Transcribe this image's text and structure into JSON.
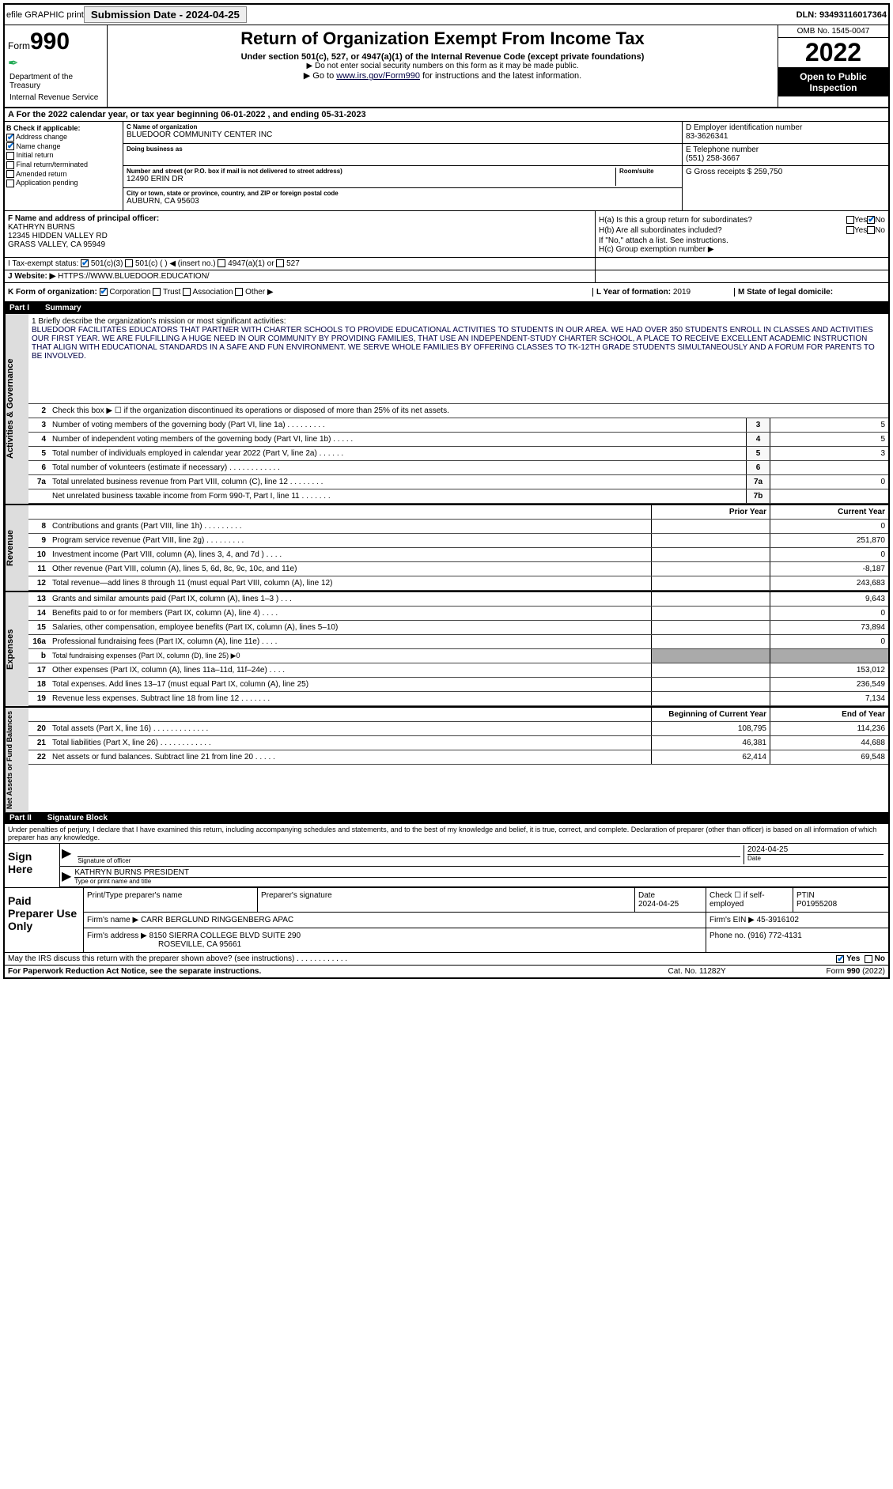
{
  "topbar": {
    "efile": "efile GRAPHIC print",
    "submission": "Submission Date - 2024-04-25",
    "dln": "DLN: 93493116017364"
  },
  "header": {
    "form_label": "Form",
    "form_num": "990",
    "title": "Return of Organization Exempt From Income Tax",
    "subtitle": "Under section 501(c), 527, or 4947(a)(1) of the Internal Revenue Code (except private foundations)",
    "note1": "▶ Do not enter social security numbers on this form as it may be made public.",
    "note2_pre": "▶ Go to ",
    "note2_link": "www.irs.gov/Form990",
    "note2_post": " for instructions and the latest information.",
    "omb": "OMB No. 1545-0047",
    "year": "2022",
    "inspection": "Open to Public Inspection",
    "dept": "Department of the Treasury",
    "irs": "Internal Revenue Service"
  },
  "rowA": "A  For the 2022 calendar year, or tax year beginning 06-01-2022  , and ending 05-31-2023",
  "sectionB": {
    "header": "B Check if applicable:",
    "items": [
      {
        "label": "Address change",
        "checked": true
      },
      {
        "label": "Name change",
        "checked": true
      },
      {
        "label": "Initial return",
        "checked": false
      },
      {
        "label": "Final return/terminated",
        "checked": false
      },
      {
        "label": "Amended return",
        "checked": false
      },
      {
        "label": "Application pending",
        "checked": false
      }
    ]
  },
  "sectionC": {
    "name_label": "C Name of organization",
    "name": "BLUEDOOR COMMUNITY CENTER INC",
    "dba_label": "Doing business as",
    "dba": "",
    "addr_label": "Number and street (or P.O. box if mail is not delivered to street address)",
    "room_label": "Room/suite",
    "addr": "12490 ERIN DR",
    "city_label": "City or town, state or province, country, and ZIP or foreign postal code",
    "city": "AUBURN, CA  95603"
  },
  "sectionD": {
    "ein_label": "D Employer identification number",
    "ein": "83-3626341",
    "phone_label": "E Telephone number",
    "phone": "(551) 258-3667",
    "gross_label": "G Gross receipts $",
    "gross": "259,750"
  },
  "sectionF": {
    "label": "F  Name and address of principal officer:",
    "name": "KATHRYN BURNS",
    "addr1": "12345 HIDDEN VALLEY RD",
    "addr2": "GRASS VALLEY, CA  95949"
  },
  "sectionH": {
    "a_label": "H(a)  Is this a group return for subordinates?",
    "a_yes": "Yes",
    "a_no": "No",
    "b_label": "H(b)  Are all subordinates included?",
    "b_note": "If \"No,\" attach a list. See instructions.",
    "c_label": "H(c)  Group exemption number ▶"
  },
  "rowI": {
    "label": "I    Tax-exempt status:",
    "opt1": "501(c)(3)",
    "opt2": "501(c) (  ) ◀ (insert no.)",
    "opt3": "4947(a)(1) or",
    "opt4": "527"
  },
  "rowJ": {
    "label": "J   Website: ▶",
    "url": "HTTPS://WWW.BLUEDOOR.EDUCATION/"
  },
  "rowK": {
    "label": "K Form of organization:",
    "opts": [
      "Corporation",
      "Trust",
      "Association",
      "Other ▶"
    ],
    "L_label": "L Year of formation:",
    "L_val": "2019",
    "M_label": "M State of legal domicile:",
    "M_val": ""
  },
  "partI": {
    "header_num": "Part I",
    "header_title": "Summary"
  },
  "mission": {
    "label": "1   Briefly describe the organization's mission or most significant activities:",
    "text": "BLUEDOOR FACILITATES EDUCATORS THAT PARTNER WITH CHARTER SCHOOLS TO PROVIDE EDUCATIONAL ACTIVITIES TO STUDENTS IN OUR AREA. WE HAD OVER 350 STUDENTS ENROLL IN CLASSES AND ACTIVITIES OUR FIRST YEAR. WE ARE FULFILLING A HUGE NEED IN OUR COMMUNITY BY PROVIDING FAMILIES, THAT USE AN INDEPENDENT-STUDY CHARTER SCHOOL, A PLACE TO RECEIVE EXCELLENT ACADEMIC INSTRUCTION THAT ALIGN WITH EDUCATIONAL STANDARDS IN A SAFE AND FUN ENVIRONMENT. WE SERVE WHOLE FAMILIES BY OFFERING CLASSES TO TK-12TH GRADE STUDENTS SIMULTANEOUSLY AND A FORUM FOR PARENTS TO BE INVOLVED."
  },
  "governance_lines": [
    {
      "num": "2",
      "desc": "Check this box ▶ ☐ if the organization discontinued its operations or disposed of more than 25% of its net assets.",
      "box": "",
      "val": "",
      "fullwidth": true
    },
    {
      "num": "3",
      "desc": "Number of voting members of the governing body (Part VI, line 1a)  .   .   .   .   .   .   .   .   .",
      "box": "3",
      "val": "5"
    },
    {
      "num": "4",
      "desc": "Number of independent voting members of the governing body (Part VI, line 1b)  .   .   .   .   .",
      "box": "4",
      "val": "5"
    },
    {
      "num": "5",
      "desc": "Total number of individuals employed in calendar year 2022 (Part V, line 2a)  .   .   .   .   .   .",
      "box": "5",
      "val": "3"
    },
    {
      "num": "6",
      "desc": "Total number of volunteers (estimate if necessary)  .   .   .   .   .   .   .   .   .   .   .   .",
      "box": "6",
      "val": ""
    },
    {
      "num": "7a",
      "desc": "Total unrelated business revenue from Part VIII, column (C), line 12  .   .   .   .   .   .   .   .",
      "box": "7a",
      "val": "0"
    },
    {
      "num": "",
      "desc": "Net unrelated business taxable income from Form 990-T, Part I, line 11  .   .   .   .   .   .   .",
      "box": "7b",
      "val": ""
    }
  ],
  "two_col_header": {
    "prior": "Prior Year",
    "current": "Current Year"
  },
  "revenue_lines": [
    {
      "num": "8",
      "desc": "Contributions and grants (Part VIII, line 1h)  .   .   .   .   .   .   .   .   .",
      "prior": "",
      "current": "0"
    },
    {
      "num": "9",
      "desc": "Program service revenue (Part VIII, line 2g)  .   .   .   .   .   .   .   .   .",
      "prior": "",
      "current": "251,870"
    },
    {
      "num": "10",
      "desc": "Investment income (Part VIII, column (A), lines 3, 4, and 7d )  .   .   .   .",
      "prior": "",
      "current": "0"
    },
    {
      "num": "11",
      "desc": "Other revenue (Part VIII, column (A), lines 5, 6d, 8c, 9c, 10c, and 11e)",
      "prior": "",
      "current": "-8,187"
    },
    {
      "num": "12",
      "desc": "Total revenue—add lines 8 through 11 (must equal Part VIII, column (A), line 12)",
      "prior": "",
      "current": "243,683"
    }
  ],
  "expense_lines": [
    {
      "num": "13",
      "desc": "Grants and similar amounts paid (Part IX, column (A), lines 1–3 )  .   .   .",
      "prior": "",
      "current": "9,643"
    },
    {
      "num": "14",
      "desc": "Benefits paid to or for members (Part IX, column (A), line 4)  .   .   .   .",
      "prior": "",
      "current": "0"
    },
    {
      "num": "15",
      "desc": "Salaries, other compensation, employee benefits (Part IX, column (A), lines 5–10)",
      "prior": "",
      "current": "73,894"
    },
    {
      "num": "16a",
      "desc": "Professional fundraising fees (Part IX, column (A), line 11e)  .   .   .   .",
      "prior": "",
      "current": "0"
    },
    {
      "num": "b",
      "desc": "Total fundraising expenses (Part IX, column (D), line 25) ▶0",
      "prior": "shaded",
      "current": "shaded",
      "small": true
    },
    {
      "num": "17",
      "desc": "Other expenses (Part IX, column (A), lines 11a–11d, 11f–24e)  .   .   .   .",
      "prior": "",
      "current": "153,012"
    },
    {
      "num": "18",
      "desc": "Total expenses. Add lines 13–17 (must equal Part IX, column (A), line 25)",
      "prior": "",
      "current": "236,549"
    },
    {
      "num": "19",
      "desc": "Revenue less expenses. Subtract line 18 from line 12  .   .   .   .   .   .   .",
      "prior": "",
      "current": "7,134"
    }
  ],
  "netassets_header": {
    "begin": "Beginning of Current Year",
    "end": "End of Year"
  },
  "netassets_lines": [
    {
      "num": "20",
      "desc": "Total assets (Part X, line 16)  .   .   .   .   .   .   .   .   .   .   .   .   .",
      "prior": "108,795",
      "current": "114,236"
    },
    {
      "num": "21",
      "desc": "Total liabilities (Part X, line 26)  .   .   .   .   .   .   .   .   .   .   .   .",
      "prior": "46,381",
      "current": "44,688"
    },
    {
      "num": "22",
      "desc": "Net assets or fund balances. Subtract line 21 from line 20  .   .   .   .   .",
      "prior": "62,414",
      "current": "69,548"
    }
  ],
  "partII": {
    "header_num": "Part II",
    "header_title": "Signature Block",
    "text": "Under penalties of perjury, I declare that I have examined this return, including accompanying schedules and statements, and to the best of my knowledge and belief, it is true, correct, and complete. Declaration of preparer (other than officer) is based on all information of which preparer has any knowledge."
  },
  "sign": {
    "label": "Sign Here",
    "sig_label": "Signature of officer",
    "date_label": "Date",
    "date": "2024-04-25",
    "name": "KATHRYN BURNS PRESIDENT",
    "name_label": "Type or print name and title"
  },
  "prep": {
    "label": "Paid Preparer Use Only",
    "col1": "Print/Type preparer's name",
    "col2": "Preparer's signature",
    "col3": "Date",
    "col3_val": "2024-04-25",
    "col4": "Check ☐ if self-employed",
    "col5": "PTIN",
    "col5_val": "P01955208",
    "firm_label": "Firm's name    ▶",
    "firm": "CARR BERGLUND RINGGENBERG APAC",
    "ein_label": "Firm's EIN ▶",
    "ein": "45-3916102",
    "addr_label": "Firm's address ▶",
    "addr": "8150 SIERRA COLLEGE BLVD SUITE 290",
    "addr2": "ROSEVILLE, CA  95661",
    "phone_label": "Phone no.",
    "phone": "(916) 772-4131"
  },
  "discuss": {
    "text": "May the IRS discuss this return with the preparer shown above? (see instructions)   .   .   .   .   .   .   .   .   .   .   .   .",
    "yes": "Yes",
    "no": "No"
  },
  "footer": {
    "left": "For Paperwork Reduction Act Notice, see the separate instructions.",
    "mid": "Cat. No. 11282Y",
    "right": "Form 990 (2022)"
  },
  "side_labels": {
    "gov": "Activities & Governance",
    "rev": "Revenue",
    "exp": "Expenses",
    "net": "Net Assets or Fund Balances"
  }
}
